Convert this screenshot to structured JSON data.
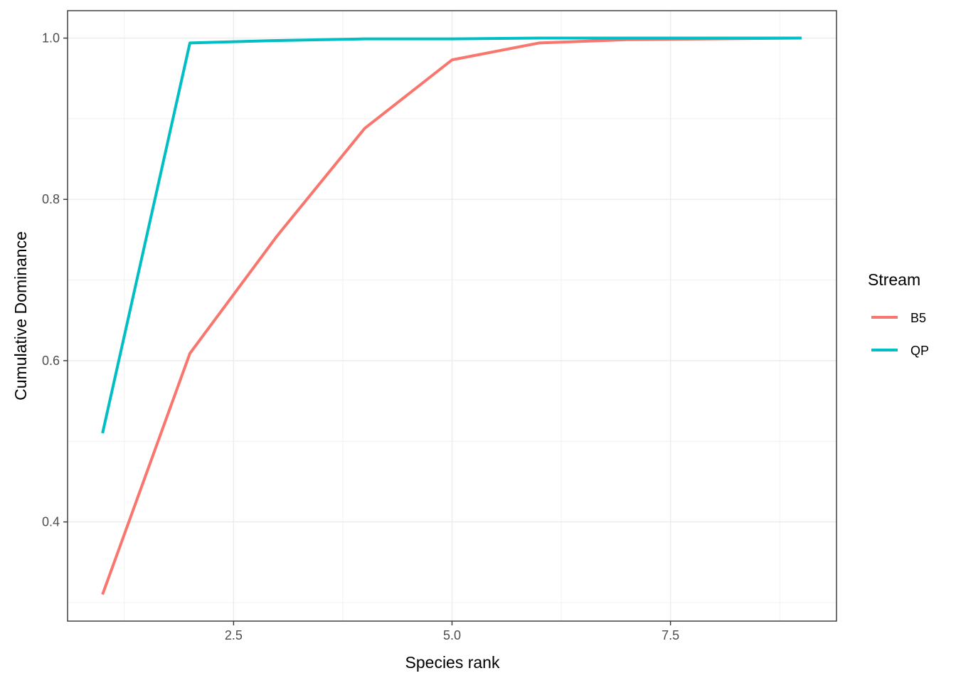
{
  "chart_data": {
    "type": "line",
    "xlabel": "Species rank",
    "ylabel": "Cumulative Dominance",
    "xlim": [
      0.6,
      9.4
    ],
    "ylim": [
      0.277,
      1.034
    ],
    "x_ticks": [
      {
        "value": 2.5,
        "label": "2.5"
      },
      {
        "value": 5.0,
        "label": "5.0"
      },
      {
        "value": 7.5,
        "label": "7.5"
      }
    ],
    "x_minor_ticks": [
      1.25,
      3.75,
      6.25,
      8.75
    ],
    "y_ticks": [
      {
        "value": 0.4,
        "label": "0.4"
      },
      {
        "value": 0.6,
        "label": "0.6"
      },
      {
        "value": 0.8,
        "label": "0.8"
      },
      {
        "value": 1.0,
        "label": "1.0"
      }
    ],
    "y_minor_ticks": [
      0.3,
      0.5,
      0.7,
      0.9
    ],
    "grid": true,
    "legend": {
      "title": "Stream",
      "position": "right"
    },
    "series": [
      {
        "name": "B5",
        "color": "#F8766D",
        "x": [
          1,
          2,
          3,
          4,
          5,
          6,
          7,
          8,
          9
        ],
        "values": [
          0.31,
          0.609,
          0.755,
          0.888,
          0.973,
          0.994,
          0.998,
          0.999,
          1.0
        ]
      },
      {
        "name": "QP",
        "color": "#00BFC4",
        "x": [
          1,
          2,
          3,
          4,
          5,
          6,
          7,
          8,
          9
        ],
        "values": [
          0.51,
          0.994,
          0.997,
          0.999,
          0.999,
          1.0,
          1.0,
          1.0,
          1.0
        ]
      }
    ]
  }
}
